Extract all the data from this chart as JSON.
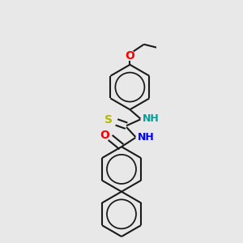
{
  "background_color": "#e8e8e8",
  "bond_color": "#1a1a1a",
  "line_width": 1.5,
  "dbo": 0.045,
  "figsize": [
    3.0,
    3.0
  ],
  "dpi": 100,
  "ring_r": 0.32,
  "colors": {
    "O": "#ff0000",
    "N_teal": "#00a0a0",
    "N_blue": "#0000ff",
    "S": "#b8b800"
  },
  "xlim": [
    0.0,
    1.0
  ],
  "ylim": [
    0.0,
    3.4
  ]
}
